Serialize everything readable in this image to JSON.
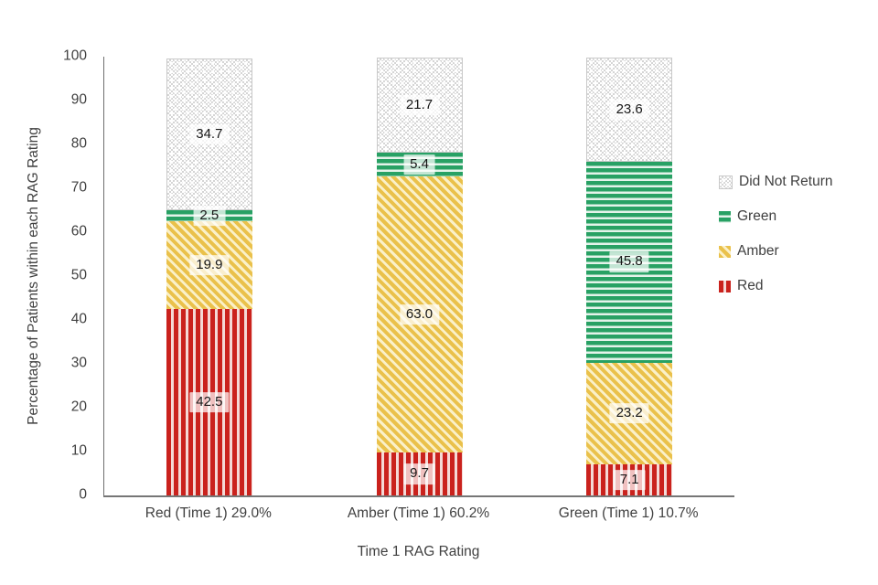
{
  "axes": {
    "y_title": "Percentage of Patients within each RAG Rating",
    "x_title": "Time 1 RAG Rating",
    "y_ticks": [
      "100",
      "90",
      "80",
      "70",
      "60",
      "50",
      "40",
      "30",
      "20",
      "10",
      "0"
    ]
  },
  "legend": {
    "items": [
      {
        "label": "Did Not Return",
        "pattern": "dotted-check"
      },
      {
        "label": "Green",
        "pattern": "horizontal-stripes"
      },
      {
        "label": "Amber",
        "pattern": "diagonal-stripes"
      },
      {
        "label": "Red",
        "pattern": "vertical-stripes"
      }
    ]
  },
  "chart_data": {
    "type": "bar",
    "stacked": true,
    "percent_stacked": true,
    "title": "",
    "xlabel": "Time 1 RAG Rating",
    "ylabel": "Percentage of Patients within each RAG Rating",
    "ylim": [
      0,
      100
    ],
    "y_tick_step": 10,
    "grid": false,
    "legend_position": "right",
    "legend_order": [
      "Did Not Return",
      "Green",
      "Amber",
      "Red"
    ],
    "categories": [
      "Red (Time 1) 29.0%",
      "Amber (Time 1) 60.2%",
      "Green (Time 1) 10.7%"
    ],
    "series": [
      {
        "name": "Red",
        "pattern": "vertical-stripes",
        "color": "#CA221D",
        "values": [
          42.5,
          9.7,
          7.1
        ],
        "labels": [
          "42.5",
          "9.7",
          "7.1"
        ]
      },
      {
        "name": "Amber",
        "pattern": "diagonal-stripes",
        "color": "#EAC14B",
        "values": [
          19.9,
          63.0,
          23.2
        ],
        "labels": [
          "19.9",
          "63.0",
          "23.2"
        ]
      },
      {
        "name": "Green",
        "pattern": "horizontal-stripes",
        "color": "#28A164",
        "values": [
          2.5,
          5.4,
          45.8
        ],
        "labels": [
          "2.5",
          "5.4",
          "45.8"
        ]
      },
      {
        "name": "Did Not Return",
        "pattern": "dotted-check",
        "color": "#D5D5D5",
        "values": [
          34.7,
          21.7,
          23.6
        ],
        "labels": [
          "34.7",
          "21.7",
          "23.6"
        ]
      }
    ]
  }
}
